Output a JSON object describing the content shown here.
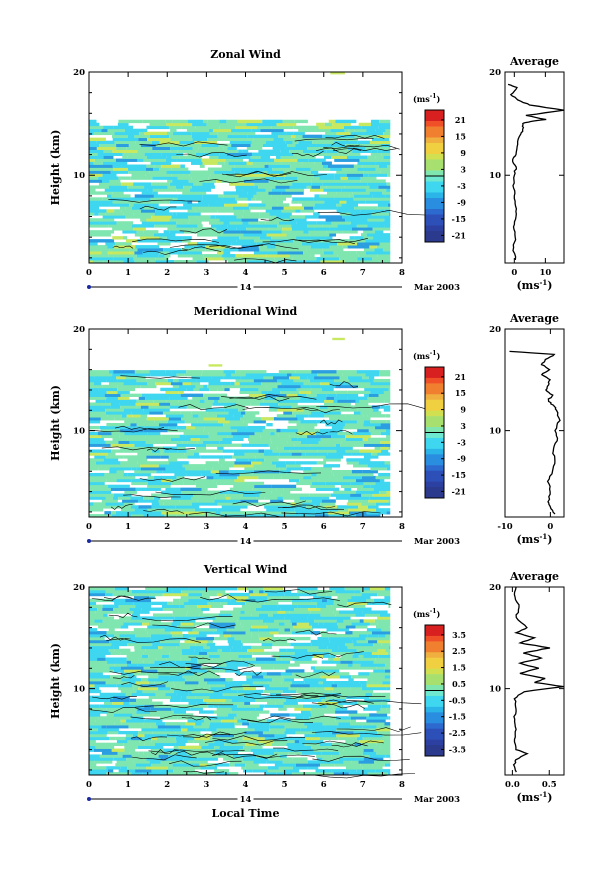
{
  "chart_data": [
    {
      "type": "heatmap",
      "title": "Zonal Wind",
      "ylabel": "Height (km)",
      "xlim": [
        0,
        8
      ],
      "ylim": [
        1.5,
        20
      ],
      "x_ticks": [
        "0",
        "1",
        "2",
        "3",
        "4",
        "5",
        "6",
        "7",
        "8"
      ],
      "y_ticks": [
        {
          "v": 20,
          "t": "20"
        },
        {
          "v": 10,
          "t": "10"
        }
      ],
      "date_day": "14",
      "date_label": "Mar 2003",
      "colorbar": {
        "unit": "(ms",
        "unit_exp": "-1",
        "unit_close": ")",
        "labels": [
          "21",
          "15",
          "9",
          "3",
          "-3",
          "-9",
          "-15",
          "-21"
        ]
      },
      "data_top_km": 15.0,
      "data_end_hour": 7.7,
      "average": {
        "title": "Average",
        "xlim": [
          -3,
          16
        ],
        "x_ticks": [
          {
            "v": 0,
            "t": "0"
          },
          {
            "v": 10,
            "t": "10"
          }
        ],
        "y_ticks": [
          {
            "v": 20,
            "t": "20"
          },
          {
            "v": 10,
            "t": "10"
          }
        ],
        "xlabel": "(ms",
        "xlabel_exp": "-1",
        "xlabel_close": ")",
        "profile": [
          [
            0.5,
            1.8
          ],
          [
            -0.5,
            3
          ],
          [
            0.5,
            4
          ],
          [
            0,
            5
          ],
          [
            0.5,
            6
          ],
          [
            0.5,
            7
          ],
          [
            0,
            8
          ],
          [
            -0.3,
            9
          ],
          [
            0,
            10
          ],
          [
            0.5,
            10.8
          ],
          [
            -0.5,
            11.5
          ],
          [
            0.5,
            12
          ],
          [
            1,
            13
          ],
          [
            2,
            14
          ],
          [
            3,
            14.5
          ],
          [
            2.5,
            15
          ],
          [
            5,
            15.2
          ],
          [
            10,
            15.4
          ],
          [
            4,
            15.8
          ],
          [
            16,
            16.3
          ],
          [
            5,
            16.8
          ],
          [
            1,
            17.3
          ],
          [
            -1,
            17.8
          ],
          [
            1,
            18.5
          ],
          [
            -2,
            18.8
          ]
        ]
      }
    },
    {
      "type": "heatmap",
      "title": "Meridional Wind",
      "ylabel": "Height (km)",
      "xlim": [
        0,
        8
      ],
      "ylim": [
        1.5,
        20
      ],
      "x_ticks": [
        "0",
        "1",
        "2",
        "3",
        "4",
        "5",
        "6",
        "7",
        "8"
      ],
      "y_ticks": [
        {
          "v": 20,
          "t": "20"
        },
        {
          "v": 10,
          "t": "10"
        }
      ],
      "date_day": "14",
      "date_label": "Mar 2003",
      "colorbar": {
        "unit": "(ms",
        "unit_exp": "-1",
        "unit_close": ")",
        "labels": [
          "21",
          "15",
          "9",
          "3",
          "-3",
          "-9",
          "-15",
          "-21"
        ]
      },
      "data_top_km": 15.5,
      "data_end_hour": 7.7,
      "average": {
        "title": "Average",
        "xlim": [
          -10,
          3
        ],
        "x_ticks": [
          {
            "v": -10,
            "t": "-10"
          },
          {
            "v": 0,
            "t": "0"
          }
        ],
        "y_ticks": [
          {
            "v": 20,
            "t": "20"
          },
          {
            "v": 10,
            "t": "10"
          }
        ],
        "xlabel": "(ms",
        "xlabel_exp": "-1",
        "xlabel_close": ")",
        "profile": [
          [
            1,
            1.8
          ],
          [
            0,
            2.5
          ],
          [
            -0.5,
            3
          ],
          [
            0,
            4
          ],
          [
            -0.5,
            5
          ],
          [
            0.5,
            6
          ],
          [
            1,
            7
          ],
          [
            0.5,
            8
          ],
          [
            1.5,
            9
          ],
          [
            1,
            10
          ],
          [
            2,
            11
          ],
          [
            1.5,
            12
          ],
          [
            0.5,
            12.5
          ],
          [
            -0.5,
            13
          ],
          [
            0.5,
            13.5
          ],
          [
            -1,
            14
          ],
          [
            -0.5,
            14.5
          ],
          [
            0,
            15
          ],
          [
            -2,
            15.5
          ],
          [
            0,
            16
          ],
          [
            -2,
            16.5
          ],
          [
            -1,
            17
          ],
          [
            1,
            17.5
          ],
          [
            -9,
            17.8
          ]
        ]
      }
    },
    {
      "type": "heatmap",
      "title": "Vertical Wind",
      "ylabel": "Height (km)",
      "xlabel": "Local Time",
      "xlim": [
        0,
        8
      ],
      "ylim": [
        1.5,
        20
      ],
      "x_ticks": [
        "0",
        "1",
        "2",
        "3",
        "4",
        "5",
        "6",
        "7",
        "8"
      ],
      "y_ticks": [
        {
          "v": 20,
          "t": "20"
        },
        {
          "v": 10,
          "t": "10"
        }
      ],
      "date_day": "14",
      "date_label": "Mar 2003",
      "colorbar": {
        "unit": "(ms",
        "unit_exp": "-1",
        "unit_close": ")",
        "labels": [
          "3.5",
          "2.5",
          "1.5",
          "0.5",
          "-0.5",
          "-1.5",
          "-2.5",
          "-3.5"
        ]
      },
      "data_top_km": 20,
      "data_end_hour": 7.7,
      "average": {
        "title": "Average",
        "xlim": [
          -0.1,
          0.7
        ],
        "x_ticks": [
          {
            "v": 0,
            "t": "0.0"
          },
          {
            "v": 0.5,
            "t": "0.5"
          }
        ],
        "y_ticks": [
          {
            "v": 20,
            "t": "20"
          },
          {
            "v": 10,
            "t": "10"
          }
        ],
        "xlabel": "(ms",
        "xlabel_exp": "-1",
        "xlabel_close": ")",
        "profile": [
          [
            0.05,
            1.8
          ],
          [
            0.02,
            2.5
          ],
          [
            0.05,
            3
          ],
          [
            0.2,
            3.6
          ],
          [
            0.05,
            4
          ],
          [
            0.03,
            5
          ],
          [
            0.05,
            6
          ],
          [
            0.02,
            7
          ],
          [
            0.05,
            8
          ],
          [
            0.03,
            9
          ],
          [
            0.15,
            9.7
          ],
          [
            0.7,
            10.2
          ],
          [
            0.3,
            10.6
          ],
          [
            0.45,
            11
          ],
          [
            0.1,
            11.5
          ],
          [
            0.35,
            12
          ],
          [
            0.1,
            12.5
          ],
          [
            0.4,
            13
          ],
          [
            0.15,
            13.5
          ],
          [
            0.5,
            14
          ],
          [
            0.1,
            14.5
          ],
          [
            0.3,
            15
          ],
          [
            0.05,
            15.5
          ],
          [
            0.2,
            16
          ],
          [
            0.05,
            17
          ],
          [
            0.1,
            18
          ],
          [
            0.03,
            19
          ],
          [
            0.05,
            20
          ]
        ]
      }
    }
  ],
  "colors": {
    "bins": [
      "#2b3a8c",
      "#2d5fcc",
      "#2a9ee0",
      "#3fd6f0",
      "#7fe6b0",
      "#c8e860",
      "#f0d040",
      "#f08030",
      "#d82020"
    ]
  }
}
